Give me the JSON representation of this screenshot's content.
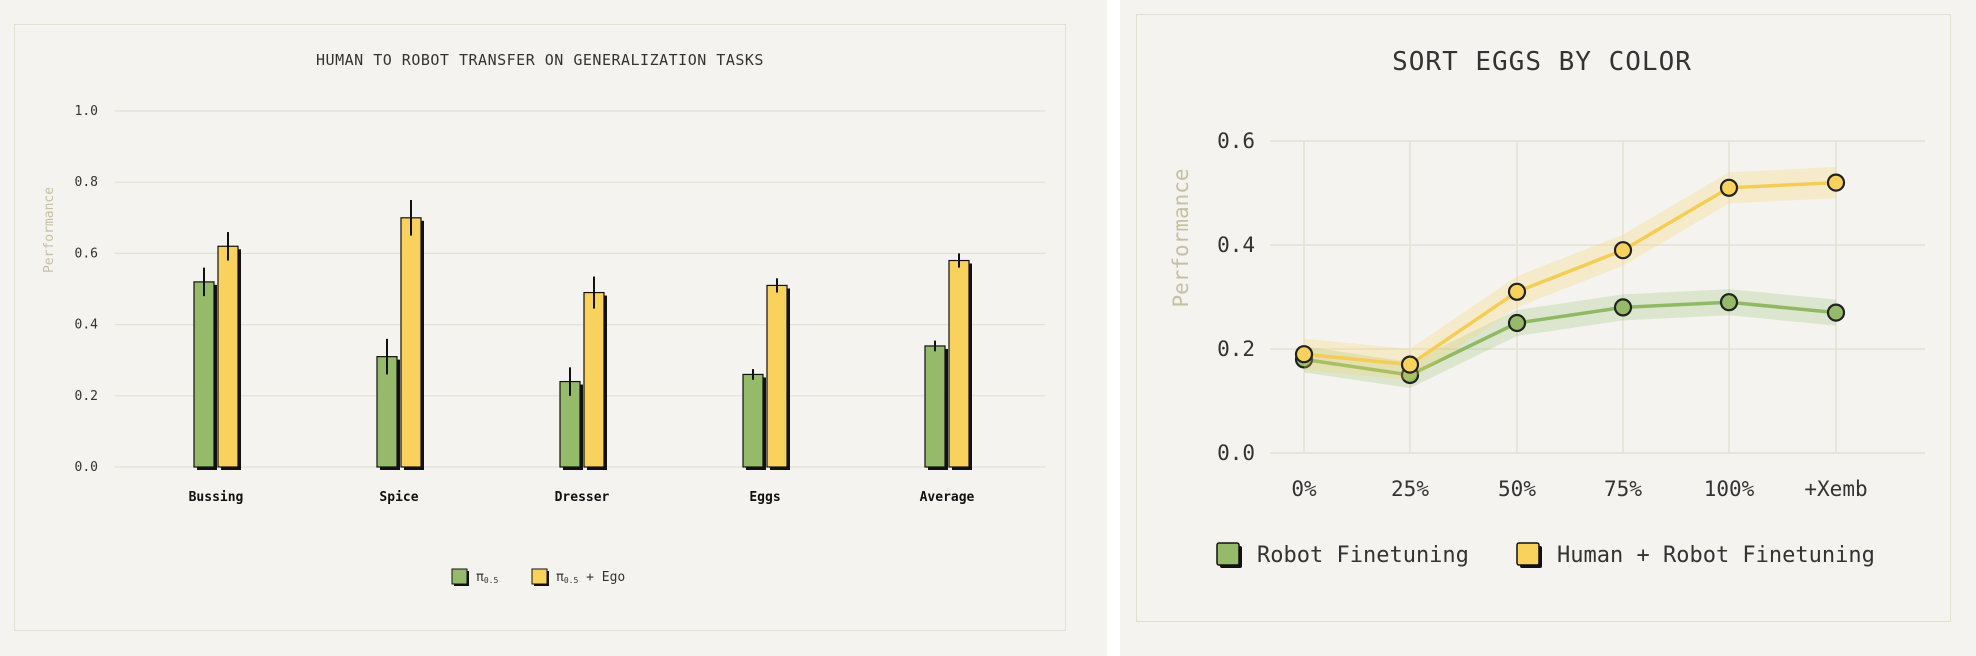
{
  "colors": {
    "green": "#95bb6a",
    "yellow": "#f9d25e",
    "green_line": "#8fb965",
    "yellow_line": "#f5cd55",
    "grid": "#e3e2d4"
  },
  "chart_data": [
    {
      "type": "bar",
      "title": "HUMAN TO ROBOT TRANSFER ON GENERALIZATION TASKS",
      "ylabel": "Performance",
      "xlabel": "",
      "ylim": [
        0,
        1.0
      ],
      "yticks": [
        "0.0",
        "0.2",
        "0.4",
        "0.6",
        "0.8",
        "1.0"
      ],
      "grid": true,
      "legend_position": "bottom-center",
      "categories": [
        "Bussing",
        "Spice",
        "Dresser",
        "Eggs",
        "Average"
      ],
      "series": [
        {
          "name": "π0.5",
          "name_base": "π",
          "name_sub": "0.5",
          "name_suffix": "",
          "values": [
            0.52,
            0.31,
            0.24,
            0.26,
            0.34
          ],
          "errors": [
            0.04,
            0.05,
            0.04,
            0.015,
            0.015
          ]
        },
        {
          "name": "π0.5 + Ego",
          "name_base": "π",
          "name_sub": "0.5",
          "name_suffix": " + Ego",
          "values": [
            0.62,
            0.7,
            0.49,
            0.51,
            0.58
          ],
          "errors": [
            0.04,
            0.05,
            0.045,
            0.02,
            0.02
          ]
        }
      ]
    },
    {
      "type": "line",
      "title": "SORT EGGS BY COLOR",
      "ylabel": "Performance",
      "xlabel": "",
      "ylim": [
        0,
        0.6
      ],
      "yticks": [
        "0.0",
        "0.2",
        "0.4",
        "0.6"
      ],
      "grid": true,
      "legend_position": "bottom-left",
      "x": [
        "0%",
        "25%",
        "50%",
        "75%",
        "100%",
        "+Xemb"
      ],
      "series": [
        {
          "name": "Robot Finetuning",
          "values": [
            0.18,
            0.15,
            0.25,
            0.28,
            0.29,
            0.27
          ],
          "band": 0.025
        },
        {
          "name": "Human + Robot Finetuning",
          "values": [
            0.19,
            0.17,
            0.31,
            0.39,
            0.51,
            0.52
          ],
          "band": 0.03
        }
      ]
    }
  ]
}
